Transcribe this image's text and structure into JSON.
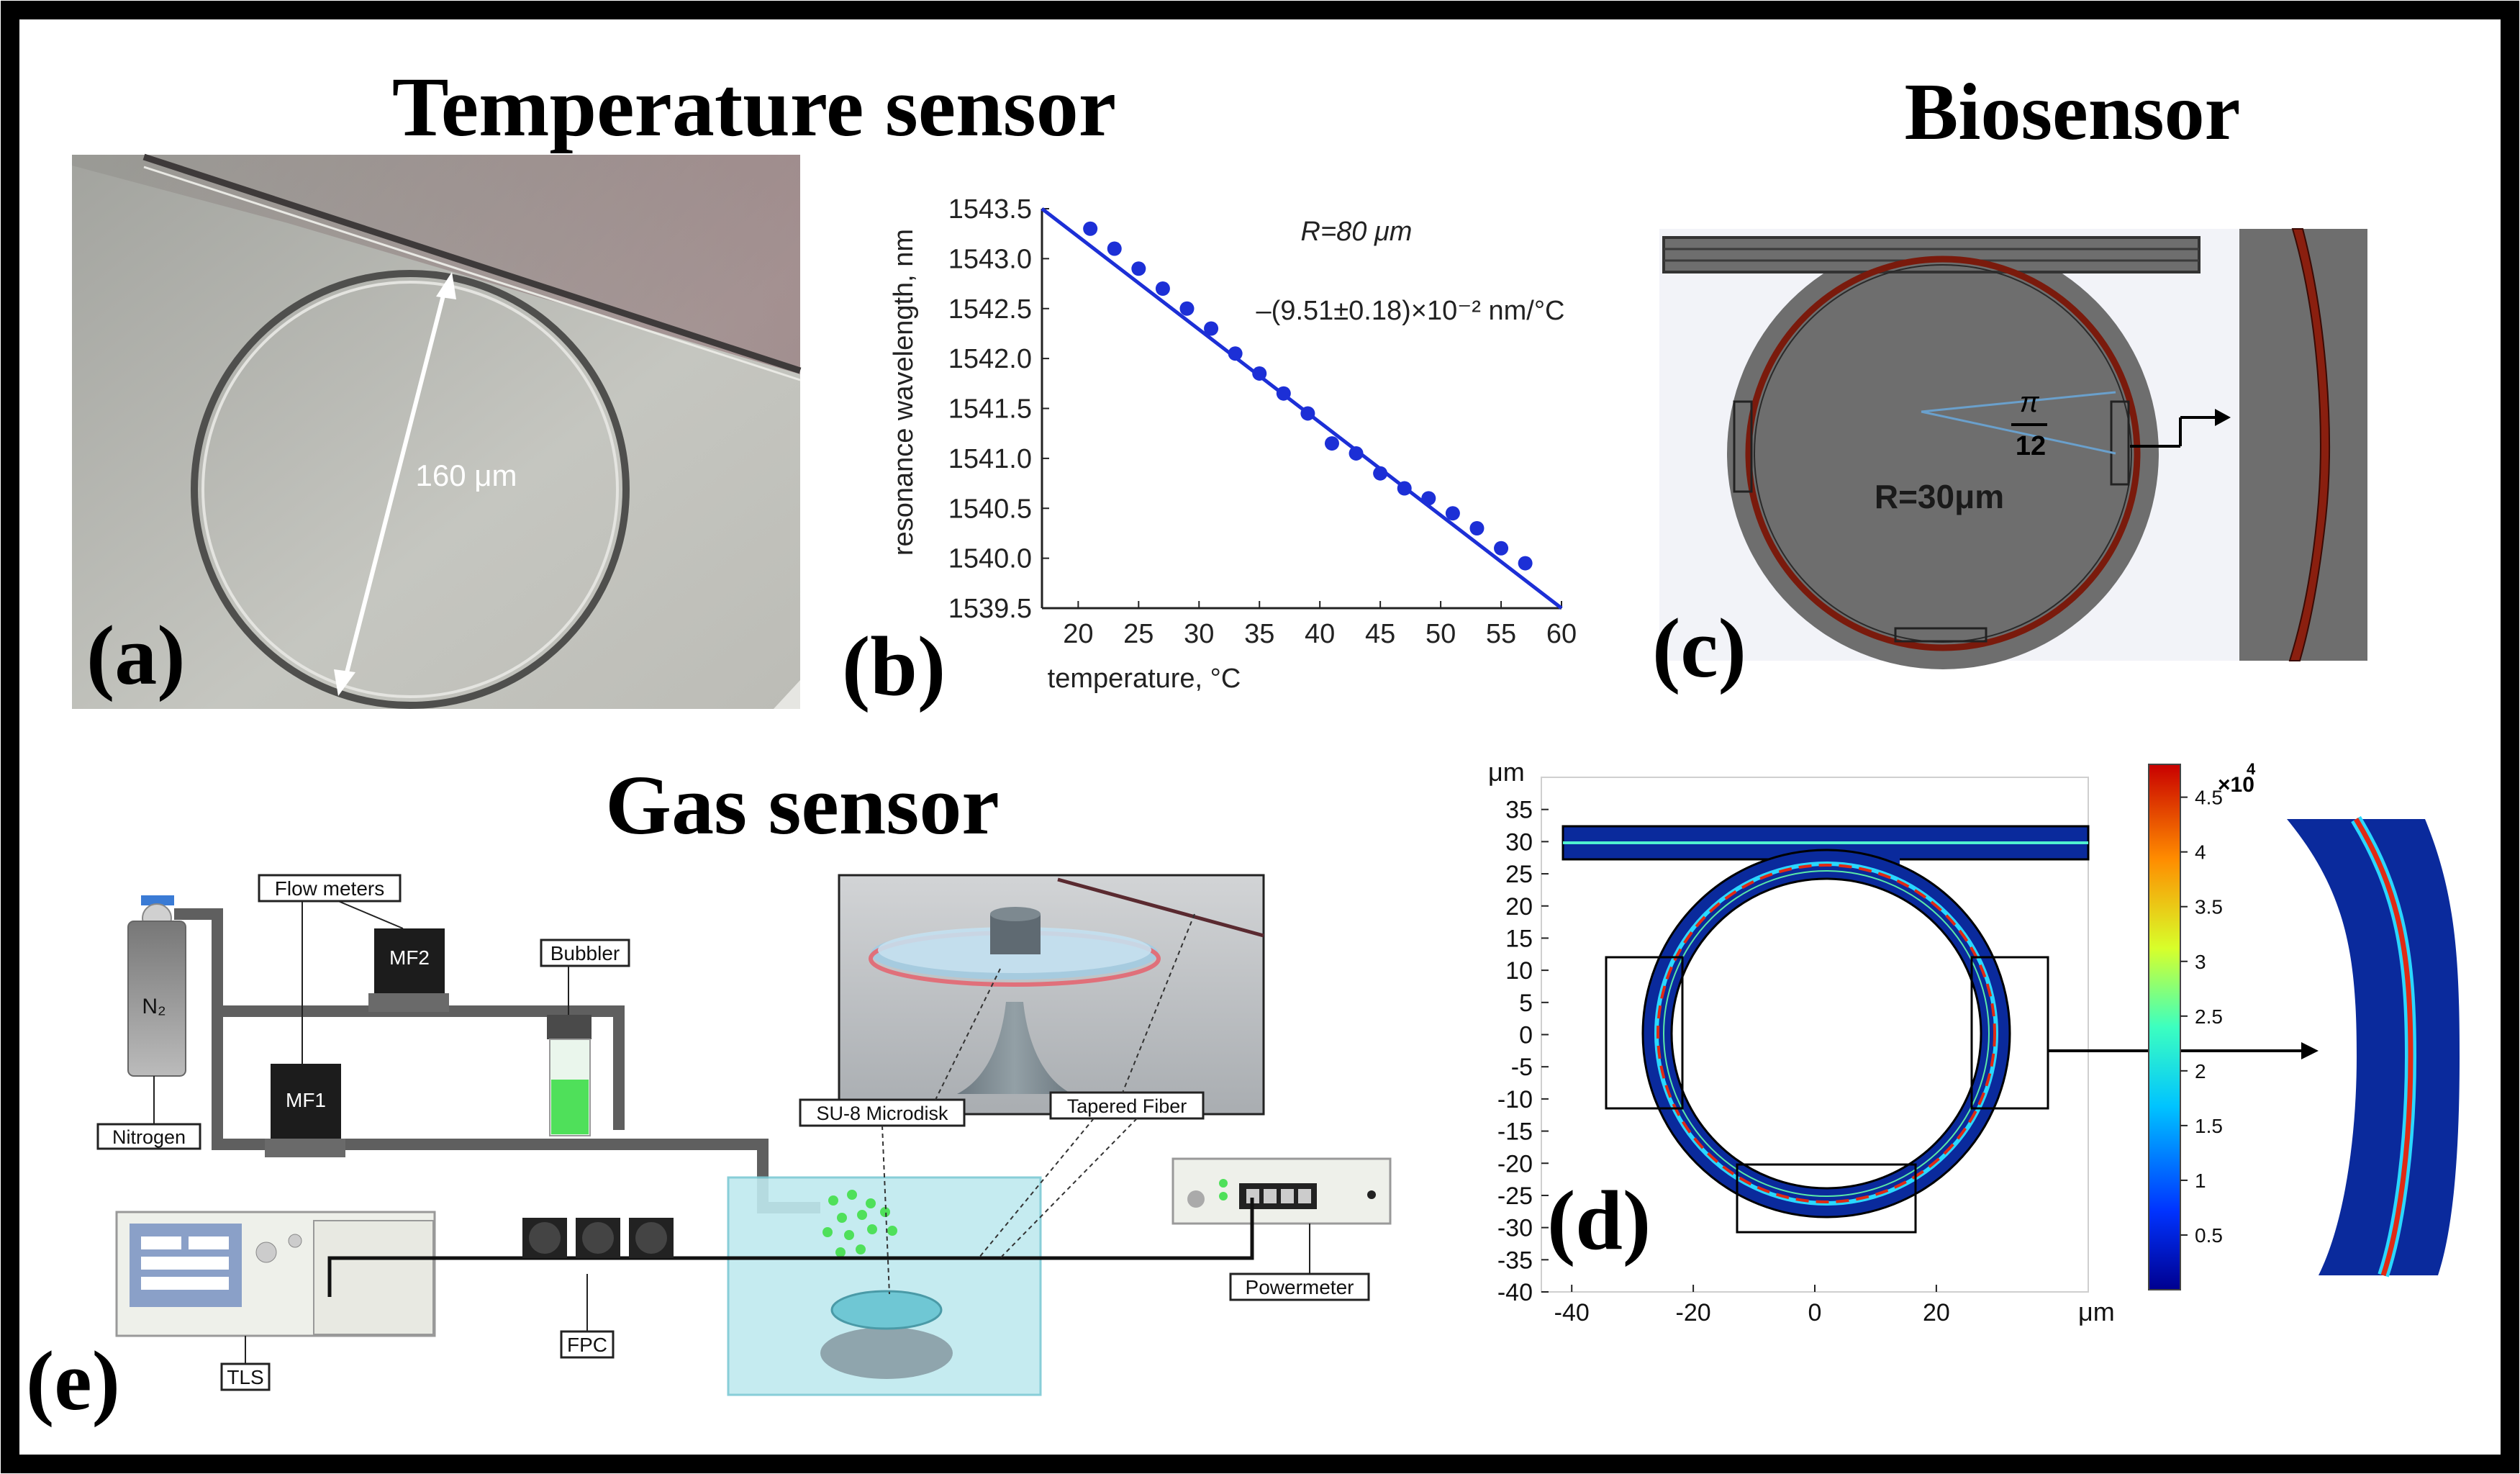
{
  "titles": {
    "temperature": "Temperature sensor",
    "biosensor": "Biosensor",
    "gas": "Gas sensor"
  },
  "panel_labels": {
    "a": "(a)",
    "b": "(b)",
    "c": "(c)",
    "d": "(d)",
    "e": "(e)"
  },
  "panel_a": {
    "diameter_label": "160 μm"
  },
  "panel_c": {
    "radius_label": "R=30μm",
    "angle_num": "π",
    "angle_den": "12"
  },
  "chart_data": [
    {
      "type": "scatter",
      "panel": "b",
      "title": "",
      "xlabel": "temperature, °C",
      "ylabel": "resonance wavelength, nm",
      "xlim": [
        17,
        60
      ],
      "ylim": [
        1539.5,
        1543.5
      ],
      "xticks": [
        "20",
        "25",
        "30",
        "35",
        "40",
        "45",
        "50",
        "55",
        "60"
      ],
      "yticks": [
        "1539.5",
        "1540.0",
        "1540.5",
        "1541.0",
        "1541.5",
        "1542.0",
        "1542.5",
        "1543.0",
        "1543.5"
      ],
      "points_x": [
        21,
        23,
        25,
        27,
        29,
        31,
        33,
        35,
        37,
        39,
        41,
        43,
        45,
        47,
        49,
        51,
        53,
        55,
        57
      ],
      "points_y": [
        1543.3,
        1543.1,
        1542.9,
        1542.7,
        1542.5,
        1542.3,
        1542.05,
        1541.85,
        1541.65,
        1541.45,
        1541.15,
        1541.05,
        1540.85,
        1540.7,
        1540.6,
        1540.45,
        1540.3,
        1540.1,
        1539.95
      ],
      "fit_line": {
        "x": [
          17,
          60
        ],
        "y": [
          1543.5,
          1539.5
        ]
      },
      "annotations": [
        "R=80 μm",
        "–(9.51±0.18)×10⁻² nm/°C"
      ],
      "colors": {
        "points": "#1c2fd6",
        "line": "#1c2fd6"
      }
    },
    {
      "type": "heatmap",
      "panel": "d",
      "title": "",
      "xlabel": "μm",
      "ylabel": "μm",
      "xlim": [
        -45,
        45
      ],
      "ylim": [
        -40,
        40
      ],
      "xticks": [
        "-40",
        "-20",
        "0",
        "20"
      ],
      "yticks": [
        "35",
        "30",
        "25",
        "20",
        "15",
        "10",
        "5",
        "0",
        "-5",
        "-10",
        "-15",
        "-20",
        "-25",
        "-30",
        "-35",
        "-40"
      ],
      "colorbar": {
        "ticks": [
          "4.5",
          "4",
          "3.5",
          "3",
          "2.5",
          "2",
          "1.5",
          "1",
          "0.5"
        ],
        "multiplier": "×10",
        "exponent": "4",
        "range": [
          0,
          48000
        ]
      }
    }
  ],
  "panel_e": {
    "labels": {
      "flow_meters": "Flow meters",
      "bubbler": "Bubbler",
      "nitrogen": "Nitrogen",
      "mf1": "MF1",
      "mf2": "MF2",
      "n2": "N₂",
      "su8": "SU-8 Microdisk",
      "fiber": "Tapered Fiber",
      "powermeter": "Powermeter",
      "tls": "TLS",
      "fpc": "FPC"
    }
  },
  "colors": {
    "border": "#000000",
    "ring_brown": "#7a1a0c",
    "gray_body": "#6e6e6e",
    "field_bg": "#0a2a9c",
    "green": "#4fe05a",
    "tank": "#bfe9ef"
  }
}
